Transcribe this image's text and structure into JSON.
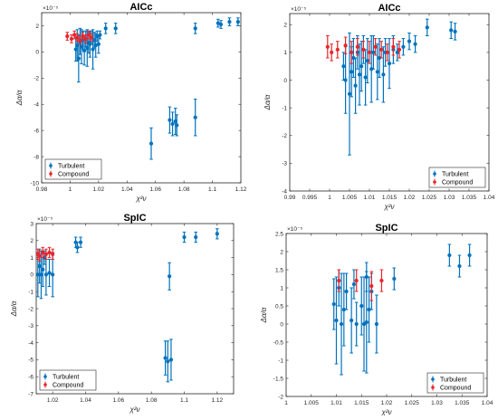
{
  "legend_labels": {
    "turbulent": "Turbulent",
    "compound": "Compound"
  },
  "colors": {
    "turbulent": "#0072BD",
    "compound": "#E8262B",
    "axis": "#262626",
    "grid": "#ffffff"
  },
  "chart_data": [
    {
      "type": "scatter",
      "title": "AICc",
      "xlabel": "χ²ν",
      "ylabel": "Δα/α",
      "exponent_label": "×10⁻⁵",
      "xlim": [
        0.98,
        1.12
      ],
      "ylim": [
        -10,
        3
      ],
      "xticks": [
        0.98,
        1,
        1.02,
        1.04,
        1.06,
        1.08,
        1.1,
        1.12
      ],
      "xtick_labels": [
        "0.98",
        "1",
        "1.02",
        "1.04",
        "1.06",
        "1.08",
        "1.1",
        "1.12"
      ],
      "yticks": [
        -10,
        -8,
        -6,
        -4,
        -2,
        0,
        2
      ],
      "ytick_labels": [
        "-10",
        "-8",
        "-6",
        "-4",
        "-2",
        "0",
        "2"
      ],
      "legend_position": "bottom-left",
      "series": [
        {
          "name": "Turbulent",
          "points": [
            [
              1.004,
              0.2,
              0.9
            ],
            [
              1.005,
              0.5,
              1.2
            ],
            [
              1.006,
              -0.5,
              1.8
            ],
            [
              1.007,
              0.8,
              1.0
            ],
            [
              1.008,
              0.4,
              1.3
            ],
            [
              1.009,
              0.9,
              0.7
            ],
            [
              1.01,
              0.1,
              1.1
            ],
            [
              1.011,
              1.0,
              0.6
            ],
            [
              1.012,
              0.3,
              1.4
            ],
            [
              1.013,
              0.7,
              0.8
            ],
            [
              1.014,
              0.6,
              1.0
            ],
            [
              1.015,
              1.1,
              0.5
            ],
            [
              1.016,
              0.2,
              1.5
            ],
            [
              1.017,
              0.9,
              0.6
            ],
            [
              1.018,
              0.5,
              0.9
            ],
            [
              1.019,
              1.2,
              0.4
            ],
            [
              1.02,
              0.6,
              0.7
            ],
            [
              1.021,
              1.3,
              0.3
            ],
            [
              1.025,
              1.8,
              0.4
            ],
            [
              1.032,
              1.8,
              0.4
            ],
            [
              1.057,
              -7.0,
              1.2
            ],
            [
              1.07,
              -5.2,
              1.0
            ],
            [
              1.072,
              -5.5,
              0.9
            ],
            [
              1.074,
              -5.3,
              1.0
            ],
            [
              1.075,
              -5.6,
              0.8
            ],
            [
              1.088,
              -5.0,
              1.4
            ],
            [
              1.088,
              1.8,
              0.4
            ],
            [
              1.104,
              2.2,
              0.3
            ],
            [
              1.106,
              2.1,
              0.3
            ],
            [
              1.112,
              2.3,
              0.3
            ],
            [
              1.118,
              2.3,
              0.3
            ]
          ]
        },
        {
          "name": "Compound",
          "points": [
            [
              0.998,
              1.2,
              0.3
            ],
            [
              1.001,
              1.0,
              0.3
            ],
            [
              1.003,
              1.3,
              0.3
            ],
            [
              1.005,
              1.1,
              0.3
            ],
            [
              1.007,
              0.9,
              0.3
            ],
            [
              1.009,
              1.2,
              0.3
            ],
            [
              1.011,
              1.0,
              0.3
            ],
            [
              1.013,
              1.3,
              0.3
            ],
            [
              1.015,
              1.1,
              0.3
            ]
          ]
        }
      ]
    },
    {
      "type": "scatter",
      "title": "AICc",
      "xlabel": "χ²ν",
      "ylabel": "Δα/α",
      "exponent_label": "×10⁻⁵",
      "xlim": [
        0.99,
        1.04
      ],
      "ylim": [
        -4,
        2.4
      ],
      "xticks": [
        0.99,
        0.995,
        1,
        1.005,
        1.01,
        1.015,
        1.02,
        1.025,
        1.03,
        1.035,
        1.04
      ],
      "xtick_labels": [
        "0.99",
        "0.995",
        "1",
        "1.005",
        "1.01",
        "1.015",
        "1.02",
        "1.025",
        "1.03",
        "1.035",
        "1.04"
      ],
      "yticks": [
        -4,
        -3,
        -2,
        -1,
        0,
        1,
        2
      ],
      "ytick_labels": [
        "-4",
        "-3",
        "-2",
        "-1",
        "0",
        "1",
        "2"
      ],
      "legend_position": "bottom-right",
      "series": [
        {
          "name": "Turbulent",
          "points": [
            [
              1.0035,
              0.5,
              0.5
            ],
            [
              1.004,
              0.0,
              1.2
            ],
            [
              1.005,
              -0.5,
              2.2
            ],
            [
              1.0055,
              0.3,
              0.9
            ],
            [
              1.006,
              0.8,
              0.7
            ],
            [
              1.0065,
              -0.2,
              1.0
            ],
            [
              1.007,
              1.0,
              0.6
            ],
            [
              1.0075,
              0.2,
              1.1
            ],
            [
              1.008,
              0.5,
              0.9
            ],
            [
              1.0085,
              1.1,
              0.5
            ],
            [
              1.009,
              0.1,
              1.0
            ],
            [
              1.0095,
              0.7,
              0.8
            ],
            [
              1.0105,
              0.4,
              1.2
            ],
            [
              1.011,
              1.0,
              0.6
            ],
            [
              1.012,
              0.3,
              1.0
            ],
            [
              1.0125,
              0.8,
              0.7
            ],
            [
              1.0135,
              0.2,
              1.0
            ],
            [
              1.014,
              1.0,
              0.5
            ],
            [
              1.015,
              0.6,
              0.9
            ],
            [
              1.016,
              1.1,
              0.5
            ],
            [
              1.017,
              1.0,
              0.3
            ],
            [
              1.0185,
              1.2,
              0.3
            ],
            [
              1.02,
              1.4,
              0.3
            ],
            [
              1.0215,
              1.3,
              0.3
            ],
            [
              1.0245,
              1.9,
              0.3
            ],
            [
              1.0305,
              1.8,
              0.3
            ],
            [
              1.0315,
              1.75,
              0.3
            ]
          ]
        },
        {
          "name": "Compound",
          "points": [
            [
              0.9995,
              1.2,
              0.4
            ],
            [
              1.0005,
              1.0,
              0.3
            ],
            [
              1.002,
              1.1,
              0.3
            ],
            [
              1.004,
              1.25,
              0.3
            ],
            [
              1.0055,
              1.0,
              0.4
            ],
            [
              1.007,
              1.2,
              0.3
            ],
            [
              1.0085,
              1.1,
              0.3
            ],
            [
              1.01,
              1.0,
              0.4
            ],
            [
              1.0115,
              1.2,
              0.3
            ],
            [
              1.013,
              1.1,
              0.3
            ],
            [
              1.0145,
              1.0,
              0.3
            ],
            [
              1.016,
              1.2,
              0.3
            ],
            [
              1.0175,
              1.1,
              0.3
            ]
          ]
        }
      ]
    },
    {
      "type": "scatter",
      "title": "SpIC",
      "xlabel": "χ²ν",
      "ylabel": "Δα/α",
      "exponent_label": "×10⁻⁵",
      "xlim": [
        1.01,
        1.13
      ],
      "ylim": [
        -7,
        3
      ],
      "xticks": [
        1.02,
        1.04,
        1.06,
        1.08,
        1.1,
        1.12
      ],
      "xtick_labels": [
        "1.02",
        "1.04",
        "1.06",
        "1.08",
        "1.1",
        "1.12"
      ],
      "yticks": [
        -7,
        -6,
        -5,
        -4,
        -3,
        -2,
        -1,
        0,
        1,
        2,
        3
      ],
      "ytick_labels": [
        "-7",
        "-6",
        "-5",
        "-4",
        "-3",
        "-2",
        "-1",
        "0",
        "1",
        "2",
        "3"
      ],
      "legend_position": "bottom-left",
      "series": [
        {
          "name": "Turbulent",
          "points": [
            [
              1.011,
              0.0,
              1.3
            ],
            [
              1.012,
              0.5,
              1.0
            ],
            [
              1.013,
              0.0,
              1.4
            ],
            [
              1.014,
              0.3,
              1.0
            ],
            [
              1.015,
              1.0,
              0.4
            ],
            [
              1.016,
              0.0,
              1.2
            ],
            [
              1.018,
              0.1,
              0.8
            ],
            [
              1.02,
              0.0,
              1.3
            ],
            [
              1.034,
              1.9,
              0.3
            ],
            [
              1.035,
              1.6,
              0.3
            ],
            [
              1.037,
              1.9,
              0.3
            ],
            [
              1.0885,
              -4.9,
              1.0
            ],
            [
              1.09,
              -5.1,
              1.2
            ],
            [
              1.091,
              -0.1,
              0.8
            ],
            [
              1.092,
              -5.0,
              1.2
            ],
            [
              1.1,
              2.2,
              0.3
            ],
            [
              1.107,
              2.2,
              0.3
            ],
            [
              1.12,
              2.4,
              0.3
            ]
          ]
        },
        {
          "name": "Compound",
          "points": [
            [
              1.011,
              1.2,
              0.3
            ],
            [
              1.012,
              1.1,
              0.3
            ],
            [
              1.014,
              1.3,
              0.3
            ],
            [
              1.016,
              1.2,
              0.3
            ],
            [
              1.018,
              1.3,
              0.3
            ],
            [
              1.02,
              1.2,
              0.3
            ]
          ]
        }
      ]
    },
    {
      "type": "scatter",
      "title": "SpIC",
      "xlabel": "χ²ν",
      "ylabel": "Δα/α",
      "exponent_label": "×10⁻⁵",
      "xlim": [
        1,
        1.04
      ],
      "ylim": [
        -2,
        2.5
      ],
      "xticks": [
        1,
        1.005,
        1.01,
        1.015,
        1.02,
        1.025,
        1.03,
        1.035,
        1.04
      ],
      "xtick_labels": [
        "1",
        "1.005",
        "1.01",
        "1.015",
        "1.02",
        "1.025",
        "1.03",
        "1.035",
        "1.04"
      ],
      "yticks": [
        -2,
        -1.5,
        -1,
        -0.5,
        0,
        0.5,
        1,
        1.5,
        2,
        2.5
      ],
      "ytick_labels": [
        "-2",
        "-1.5",
        "-1",
        "-0.5",
        "0",
        "0.5",
        "1",
        "1.5",
        "2",
        "2.5"
      ],
      "legend_position": "bottom-right",
      "series": [
        {
          "name": "Turbulent",
          "points": [
            [
              1.0095,
              0.55,
              0.7
            ],
            [
              1.01,
              0.1,
              1.2
            ],
            [
              1.0105,
              1.0,
              0.5
            ],
            [
              1.011,
              0.0,
              1.4
            ],
            [
              1.0115,
              0.4,
              1.0
            ],
            [
              1.012,
              0.9,
              0.5
            ],
            [
              1.013,
              0.1,
              0.9
            ],
            [
              1.0135,
              1.1,
              0.4
            ],
            [
              1.014,
              0.0,
              0.6
            ],
            [
              1.015,
              0.5,
              0.8
            ],
            [
              1.0155,
              0.0,
              1.3
            ],
            [
              1.016,
              1.3,
              0.4
            ],
            [
              1.016,
              0.05,
              1.4
            ],
            [
              1.0165,
              0.4,
              0.9
            ],
            [
              1.017,
              0.9,
              0.5
            ],
            [
              1.018,
              0.0,
              0.8
            ],
            [
              1.0215,
              1.25,
              0.3
            ],
            [
              1.0325,
              1.9,
              0.3
            ],
            [
              1.0345,
              1.6,
              0.3
            ],
            [
              1.0365,
              1.9,
              0.3
            ]
          ]
        },
        {
          "name": "Compound",
          "points": [
            [
              1.0105,
              1.2,
              0.3
            ],
            [
              1.014,
              1.2,
              0.3
            ],
            [
              1.017,
              1.05,
              0.4
            ],
            [
              1.019,
              1.2,
              0.3
            ]
          ]
        }
      ]
    }
  ]
}
